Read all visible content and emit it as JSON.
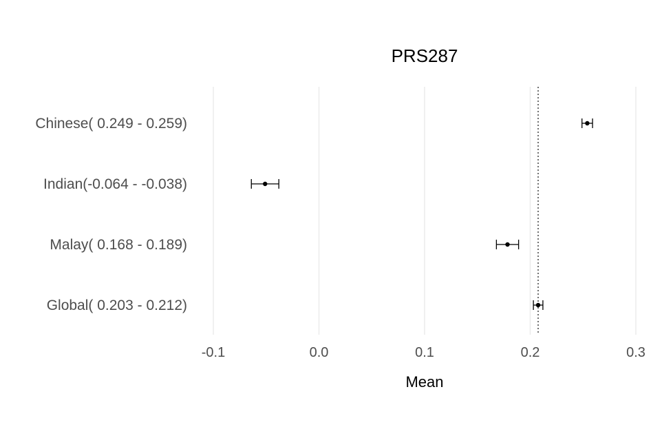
{
  "chart_data": {
    "type": "forest",
    "title": "PRS287",
    "xlabel": "Mean",
    "ylabel": "",
    "xlim": [
      -0.1,
      0.3
    ],
    "x_ticks": [
      -0.1,
      0.0,
      0.1,
      0.2,
      0.3
    ],
    "x_tick_labels": [
      "-0.1",
      "0.0",
      "0.1",
      "0.2",
      "0.3"
    ],
    "reference_line": 0.2075,
    "grid": "vertical major lines",
    "legend": "none",
    "categories": [
      "Chinese( 0.249 -  0.259)",
      "Indian(-0.064 - -0.038)",
      "Malay( 0.168 -  0.189)",
      "Global( 0.203 -  0.212)"
    ],
    "points": [
      {
        "mean": 0.254,
        "lower": 0.249,
        "upper": 0.259
      },
      {
        "mean": -0.051,
        "lower": -0.064,
        "upper": -0.038
      },
      {
        "mean": 0.1785,
        "lower": 0.168,
        "upper": 0.189
      },
      {
        "mean": 0.2075,
        "lower": 0.203,
        "upper": 0.212
      }
    ],
    "colors": {
      "point": "#000000",
      "grid": "#ebebeb",
      "text": "#4d4d4d"
    }
  }
}
